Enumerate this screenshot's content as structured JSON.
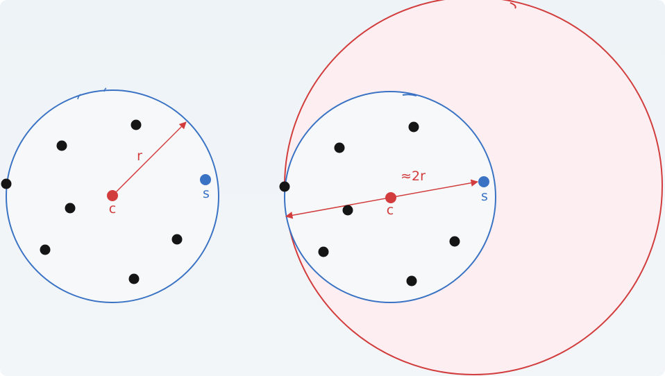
{
  "colors": {
    "blue": "#3a72c4",
    "red": "#d23c3c",
    "red_fill": "#fdeff1",
    "point": "#151515",
    "inner_fill": "#f6f8fa"
  },
  "left_diagram": {
    "center_label": "c",
    "new_point_label": "s",
    "radius_label": "r"
  },
  "right_diagram": {
    "center_label": "c",
    "new_point_label": "s",
    "diameter_label": "≈2r"
  }
}
